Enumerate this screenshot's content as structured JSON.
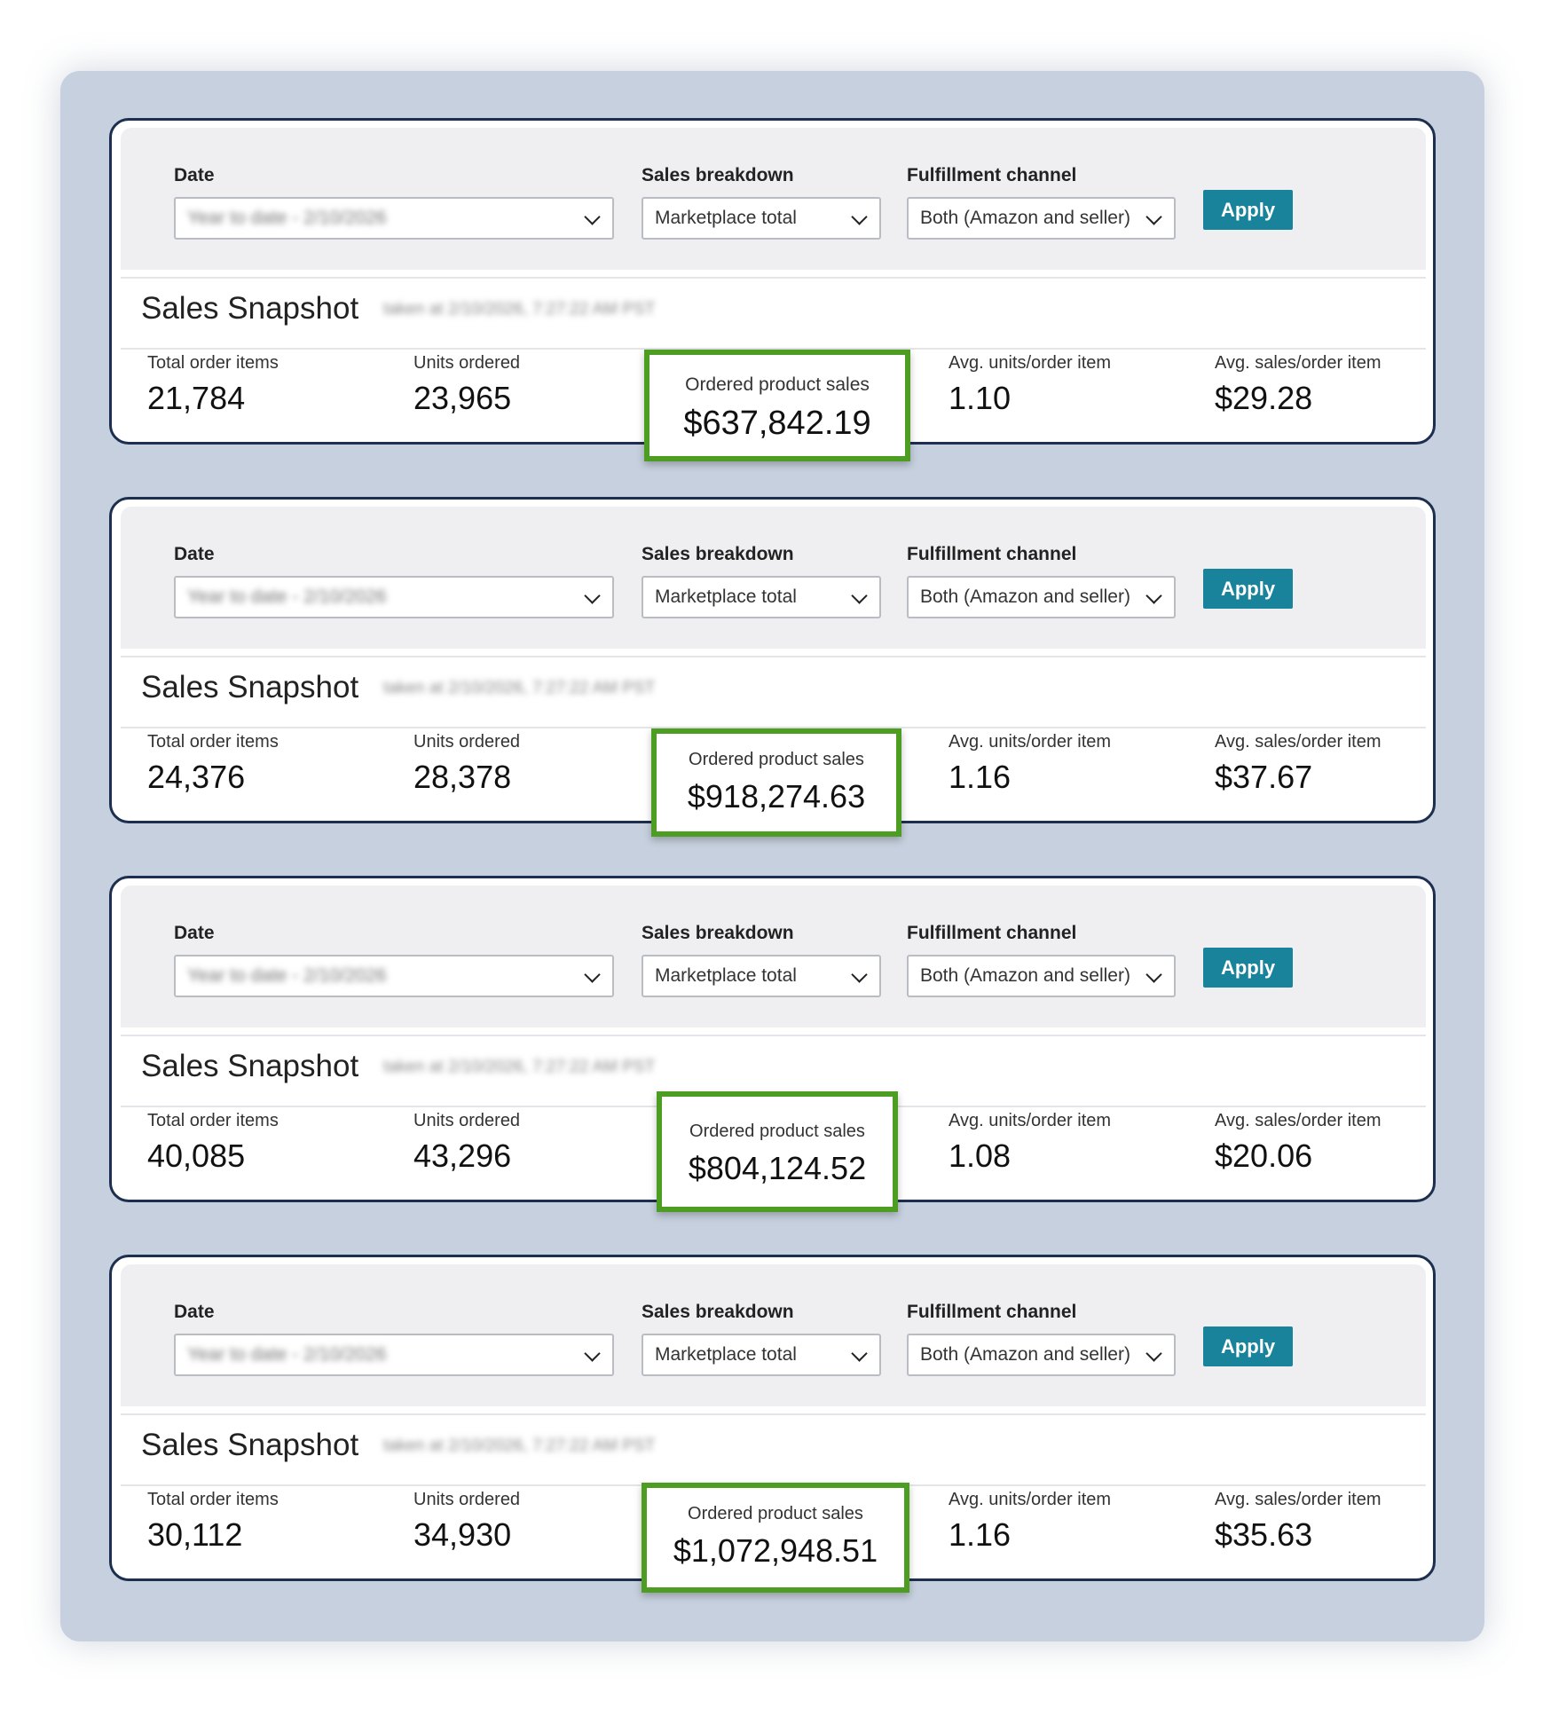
{
  "filters": {
    "date_label": "Date",
    "sales_breakdown_label": "Sales breakdown",
    "fulfillment_label": "Fulfillment channel",
    "date_value": "Year to date - 2/10/2026",
    "sales_breakdown_value": "Marketplace total",
    "fulfillment_value": "Both (Amazon and seller)",
    "apply_label": "Apply"
  },
  "snapshot": {
    "title": "Sales Snapshot",
    "timestamp": "taken at 2/10/2026, 7:27:22 AM PST"
  },
  "metric_labels": {
    "total_order_items": "Total order items",
    "units_ordered": "Units ordered",
    "ordered_product_sales": "Ordered product sales",
    "avg_units_per_order_item": "Avg. units/order item",
    "avg_sales_per_order_item": "Avg. sales/order item"
  },
  "colors": {
    "highlight_border": "#4c9d22",
    "apply_button": "#18839a",
    "card_border": "#1c2f4e"
  },
  "cards": [
    {
      "total_order_items": "21,784",
      "units_ordered": "23,965",
      "ordered_product_sales": "$637,842.19",
      "avg_units_per_order_item": "1.10",
      "avg_sales_per_order_item": "$29.28"
    },
    {
      "total_order_items": "24,376",
      "units_ordered": "28,378",
      "ordered_product_sales": "$918,274.63",
      "avg_units_per_order_item": "1.16",
      "avg_sales_per_order_item": "$37.67"
    },
    {
      "total_order_items": "40,085",
      "units_ordered": "43,296",
      "ordered_product_sales": "$804,124.52",
      "avg_units_per_order_item": "1.08",
      "avg_sales_per_order_item": "$20.06"
    },
    {
      "total_order_items": "30,112",
      "units_ordered": "34,930",
      "ordered_product_sales": "$1,072,948.51",
      "avg_units_per_order_item": "1.16",
      "avg_sales_per_order_item": "$35.63"
    }
  ]
}
